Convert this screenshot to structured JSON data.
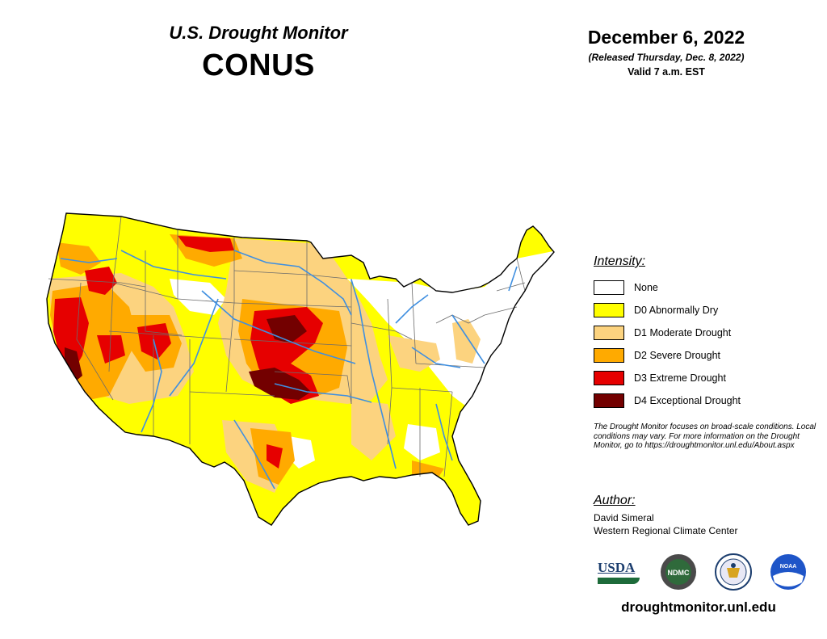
{
  "header": {
    "title": "U.S. Drought Monitor",
    "region": "CONUS",
    "date": "December 6, 2022",
    "released": "(Released Thursday, Dec. 8, 2022)",
    "valid": "Valid 7 a.m. EST"
  },
  "legend": {
    "title": "Intensity:",
    "items": [
      {
        "label": "None",
        "color": "#ffffff"
      },
      {
        "label": "D0 Abnormally Dry",
        "color": "#ffff00"
      },
      {
        "label": "D1 Moderate Drought",
        "color": "#fcd37f"
      },
      {
        "label": "D2 Severe Drought",
        "color": "#ffaa00"
      },
      {
        "label": "D3 Extreme Drought",
        "color": "#e60000"
      },
      {
        "label": "D4 Exceptional Drought",
        "color": "#730000"
      }
    ]
  },
  "note": "The Drought Monitor focuses on broad-scale conditions. Local conditions may vary. For more information on the Drought Monitor, go to https://droughtmonitor.unl.edu/About.aspx",
  "author": {
    "title": "Author:",
    "name": "David Simeral",
    "org": "Western Regional Climate Center"
  },
  "logos": {
    "usda": "USDA",
    "ndmc": "NDMC",
    "noaa": "NOAA"
  },
  "website": "droughtmonitor.unl.edu",
  "colors": {
    "river": "#3f8fe0",
    "border": "#6b6b6b"
  }
}
